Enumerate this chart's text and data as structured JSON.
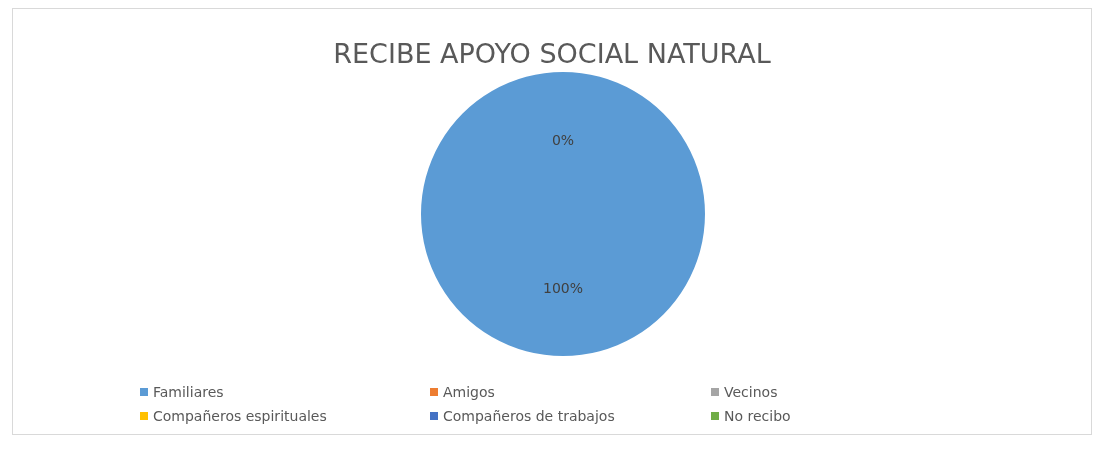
{
  "chart_data": {
    "type": "pie",
    "title": "RECIBE APOYO SOCIAL NATURAL",
    "categories": [
      "Familiares",
      "Amigos",
      "Vecinos",
      "Compañeros espirituales",
      "Compañeros de trabajos",
      "No recibo"
    ],
    "values": [
      100,
      0,
      0,
      0,
      0,
      0
    ],
    "colors": [
      "#5b9bd5",
      "#ed7d31",
      "#a5a5a5",
      "#ffc000",
      "#4472c4",
      "#70ad47"
    ],
    "value_labels": [
      "100%",
      "0%",
      null,
      null,
      null,
      null
    ],
    "legend": "bottom"
  }
}
